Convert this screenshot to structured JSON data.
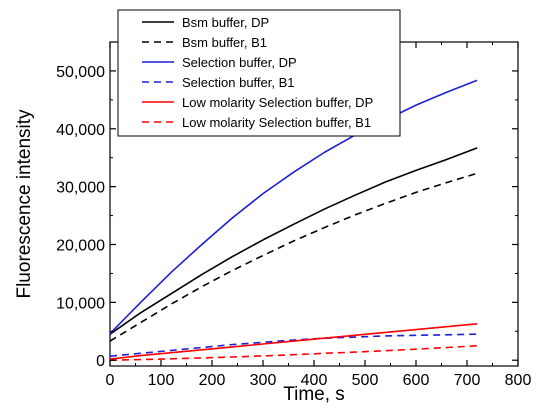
{
  "chart_data": {
    "type": "line",
    "xlabel": "Time, s",
    "ylabel": "Fluorescence intensity",
    "xlim": [
      0,
      800
    ],
    "ylim": [
      -1000,
      55000
    ],
    "x_ticks": [
      0,
      100,
      200,
      300,
      400,
      500,
      600,
      700,
      800
    ],
    "x_tick_labels": [
      "0",
      "100",
      "200",
      "300",
      "400",
      "500",
      "600",
      "700",
      "800"
    ],
    "y_ticks": [
      0,
      10000,
      20000,
      30000,
      40000,
      50000
    ],
    "y_tick_labels": [
      "0",
      "10,000",
      "20,000",
      "30,000",
      "40,000",
      "50,000"
    ],
    "grid": false,
    "legend_position": "top-right",
    "series": [
      {
        "name": "Bsm buffer, DP",
        "color": "#000000",
        "dash": "solid",
        "x": [
          0,
          60,
          120,
          180,
          240,
          300,
          360,
          420,
          480,
          540,
          600,
          660,
          720
        ],
        "y": [
          4500,
          8200,
          11500,
          14800,
          17900,
          20800,
          23500,
          26100,
          28500,
          30800,
          32800,
          34700,
          36700
        ]
      },
      {
        "name": "Bsm buffer, B1",
        "color": "#000000",
        "dash": "dashed",
        "x": [
          0,
          60,
          120,
          180,
          240,
          300,
          360,
          420,
          480,
          540,
          600,
          660,
          720
        ],
        "y": [
          3300,
          6500,
          9700,
          12700,
          15500,
          18100,
          20600,
          22900,
          25100,
          27100,
          29000,
          30700,
          32300
        ]
      },
      {
        "name": "Selection buffer, DP",
        "color": "#1f1fd6",
        "dash": "solid",
        "x": [
          0,
          60,
          120,
          180,
          240,
          300,
          360,
          420,
          480,
          540,
          600,
          660,
          720
        ],
        "y": [
          4600,
          10000,
          15200,
          20000,
          24600,
          28800,
          32500,
          35900,
          38900,
          41500,
          44100,
          46300,
          48400
        ]
      },
      {
        "name": "Selection buffer, B1",
        "color": "#1f1fd6",
        "dash": "dashed",
        "x": [
          0,
          60,
          120,
          180,
          240,
          300,
          360,
          420,
          480,
          540,
          600,
          660,
          720
        ],
        "y": [
          700,
          1200,
          1700,
          2200,
          2700,
          3100,
          3500,
          3800,
          4000,
          4200,
          4300,
          4400,
          4500
        ]
      },
      {
        "name": "Low molarity Selection buffer, DP",
        "color": "#ff0000",
        "dash": "solid",
        "x": [
          0,
          60,
          120,
          180,
          240,
          300,
          360,
          420,
          480,
          540,
          600,
          660,
          720
        ],
        "y": [
          200,
          800,
          1300,
          1800,
          2300,
          2800,
          3300,
          3800,
          4300,
          4800,
          5300,
          5800,
          6300
        ]
      },
      {
        "name": "Low molarity Selection buffer, B1",
        "color": "#ff0000",
        "dash": "dashed",
        "x": [
          0,
          60,
          120,
          180,
          240,
          300,
          360,
          420,
          480,
          540,
          600,
          660,
          720
        ],
        "y": [
          0,
          100,
          250,
          400,
          550,
          750,
          950,
          1200,
          1400,
          1650,
          1900,
          2200,
          2500
        ]
      }
    ]
  }
}
